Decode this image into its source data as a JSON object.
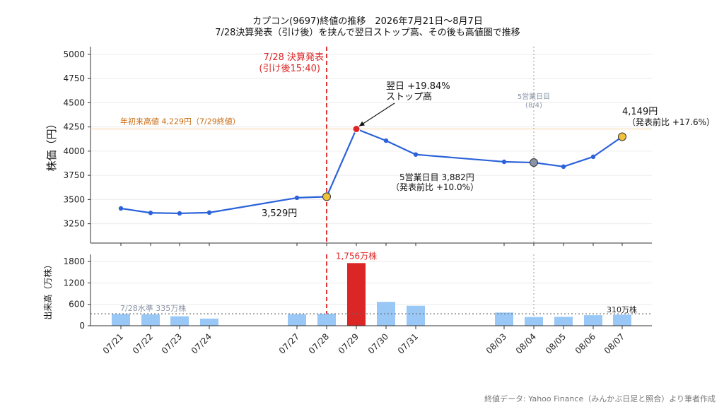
{
  "title_line1": "カプコン(9697)終値の推移　2026年7月21日〜8月7日",
  "title_line2": "7/28決算発表（引け後）を挟んで翌日ストップ高、その後も高値圏で推移",
  "source": "終値データ: Yahoo Finance（みんかぶ日足と照合）より筆者作成",
  "colors": {
    "line": "#2b62d9",
    "volume_bar": "#99c8f7",
    "volume_highlight": "#dc2626",
    "earnings_line": "#dc2626",
    "ytd_high_line": "#f7d9a8",
    "ytd_high_text": "#c76a12",
    "marker_gold": "#f0c23a",
    "marker_gray": "#8a94a6"
  },
  "chart_data": [
    {
      "type": "line",
      "ylabel": "株価（円）",
      "ylim": [
        3050,
        5080
      ],
      "yticks": [
        3250,
        3500,
        3750,
        4000,
        4250,
        4500,
        4750,
        5000
      ],
      "categories": [
        "07/21",
        "07/22",
        "07/23",
        "07/24",
        "07/27",
        "07/28",
        "07/29",
        "07/30",
        "07/31",
        "08/03",
        "08/04",
        "08/05",
        "08/06",
        "08/07"
      ],
      "values": [
        3408,
        3362,
        3357,
        3365,
        3518,
        3529,
        4229,
        4108,
        3965,
        3890,
        3882,
        3840,
        3942,
        4149
      ],
      "reference_line": {
        "value": 4229,
        "label": "年初来高値 4,229円（7/29終値）"
      },
      "annotations": {
        "earnings_label_1": "7/28 決算発表",
        "earnings_label_2": "(引け後15:40)",
        "stop_high_1": "翌日 +19.84%",
        "stop_high_2": "ストップ高",
        "pre_earnings": "3,529円",
        "day5_1": "5営業日目 3,882円",
        "day5_2": "（発表前比 +10.0%）",
        "day5_marker_1": "5営業日目",
        "day5_marker_2": "(8/4)",
        "last_1": "4,149円",
        "last_2": "（発表前比 +17.6%）"
      }
    },
    {
      "type": "bar",
      "ylabel": "出来高（万株）",
      "ylim": [
        0,
        2000
      ],
      "yticks": [
        0,
        600,
        1200,
        1800
      ],
      "categories": [
        "07/21",
        "07/22",
        "07/23",
        "07/24",
        "07/27",
        "07/28",
        "07/29",
        "07/30",
        "07/31",
        "08/03",
        "08/04",
        "08/05",
        "08/06",
        "08/07"
      ],
      "values": [
        330,
        320,
        265,
        200,
        325,
        335,
        1756,
        670,
        560,
        370,
        245,
        250,
        295,
        310
      ],
      "reference_value": 335,
      "annotations": {
        "ref_label": "7/28水準 335万株",
        "peak_label": "1,756万株",
        "last_label": "310万株"
      }
    }
  ]
}
